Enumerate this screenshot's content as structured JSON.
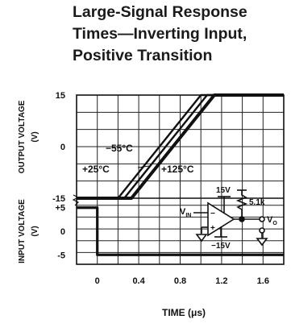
{
  "chart_data": {
    "type": "line",
    "title": [
      "Large-Signal Response",
      "Times—Inverting Input,",
      "Positive Transition"
    ],
    "xlabel": "TIME (μs)",
    "x_ticks": [
      "0",
      "0.4",
      "0.8",
      "1.2",
      "1.6"
    ],
    "x_tick_values": [
      0,
      0.4,
      0.8,
      1.2,
      1.6
    ],
    "xlim": [
      -0.2,
      1.8
    ],
    "grid": true,
    "panels": [
      {
        "name": "output",
        "ylabel": [
          "OUTPUT VOLTAGE",
          "(V)"
        ],
        "y_ticks": [
          "15",
          "0",
          "-15"
        ],
        "y_tick_values": [
          15,
          0,
          -15
        ],
        "ylim": [
          -15,
          15
        ],
        "series": [
          {
            "name": "-55°C",
            "x": [
              -0.2,
              0.2,
              1.0,
              1.8
            ],
            "y": [
              -15,
              -15,
              15,
              15
            ]
          },
          {
            "name": "+25°C",
            "x": [
              -0.2,
              0.26,
              1.06,
              1.8
            ],
            "y": [
              -15,
              -15,
              15,
              15
            ]
          },
          {
            "name": "+125°C",
            "x": [
              -0.2,
              0.33,
              1.13,
              1.8
            ],
            "y": [
              -15,
              -15,
              15,
              15
            ]
          }
        ],
        "annotations": [
          "−55°C",
          "+25°C",
          "+125°C"
        ]
      },
      {
        "name": "input",
        "ylabel": [
          "INPUT VOLTAGE",
          "(V)"
        ],
        "y_ticks": [
          "+5",
          "0",
          "-5"
        ],
        "y_tick_values": [
          5,
          0,
          -5
        ],
        "ylim": [
          -7,
          7
        ],
        "series": [
          {
            "name": "input",
            "x": [
              -0.2,
              0.0,
              0.0,
              1.8
            ],
            "y": [
              5,
              5,
              -5,
              -5
            ]
          }
        ]
      }
    ],
    "circuit_labels": {
      "vplus": "15V",
      "vminus": "−15V",
      "resistor": "5.1k",
      "vin": "V",
      "vin_sub": "IN",
      "vo": "V",
      "vo_sub": "O",
      "minus": "−",
      "plus": "+"
    }
  }
}
